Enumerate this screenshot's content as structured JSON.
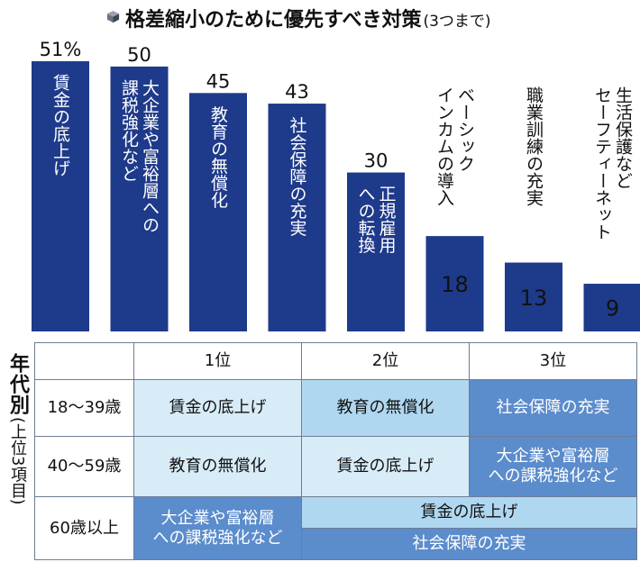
{
  "title": {
    "main": "格差縮小のために優先すべき対策",
    "sub": "(3つまで)"
  },
  "colors": {
    "bar": "#1e3a8a",
    "bar_label_light": "#ffffff",
    "tier1": "#d8ecf8",
    "tier2": "#b0d7f0",
    "tier3": "#5b8ccc"
  },
  "chart_data": {
    "type": "bar",
    "categories": [
      "賃金の底上げ",
      "大企業や富裕層への課税強化など",
      "教育の無償化",
      "社会保障の充実",
      "正規雇用への転換",
      "ベーシックインカムの導入",
      "職業訓練の充実",
      "生活保護などセーフティーネット"
    ],
    "values": [
      51,
      50,
      45,
      43,
      30,
      18,
      13,
      9
    ],
    "value_labels": [
      "51%",
      "50",
      "45",
      "43",
      "30",
      "18",
      "13",
      "9"
    ],
    "category_lines": [
      [
        "賃金の底上げ"
      ],
      [
        "大企業や富裕層への",
        "課税強化など"
      ],
      [
        "教育の無償化"
      ],
      [
        "社会保障の充実"
      ],
      [
        "正規雇用",
        "への転換"
      ],
      [
        "ベーシック",
        "インカムの導入"
      ],
      [
        "職業訓練の充実"
      ],
      [
        "生活保護など",
        "セーフティーネット"
      ]
    ],
    "ylim": [
      0,
      51
    ]
  },
  "table": {
    "side_label": "年代別",
    "side_sub": "(上位3項目)",
    "headers": [
      "1位",
      "2位",
      "3位"
    ],
    "rows": [
      {
        "age": "18〜39歳",
        "r1": "賃金の底上げ",
        "r2": "教育の無償化",
        "r3": "社会保障の充実"
      },
      {
        "age": "40〜59歳",
        "r1": "教育の無償化",
        "r2": "賃金の底上げ",
        "r3": "大企業や富裕層への課税強化など"
      },
      {
        "age": "60歳以上",
        "r1": "大企業や富裕層への課税強化など",
        "r2": "賃金の底上げ",
        "r3": "社会保障の充実"
      }
    ],
    "row3_r1_lines": [
      "大企業や富裕層",
      "への課税強化など"
    ],
    "row2_r3_lines": [
      "大企業や富裕層",
      "への課税強化など"
    ]
  }
}
